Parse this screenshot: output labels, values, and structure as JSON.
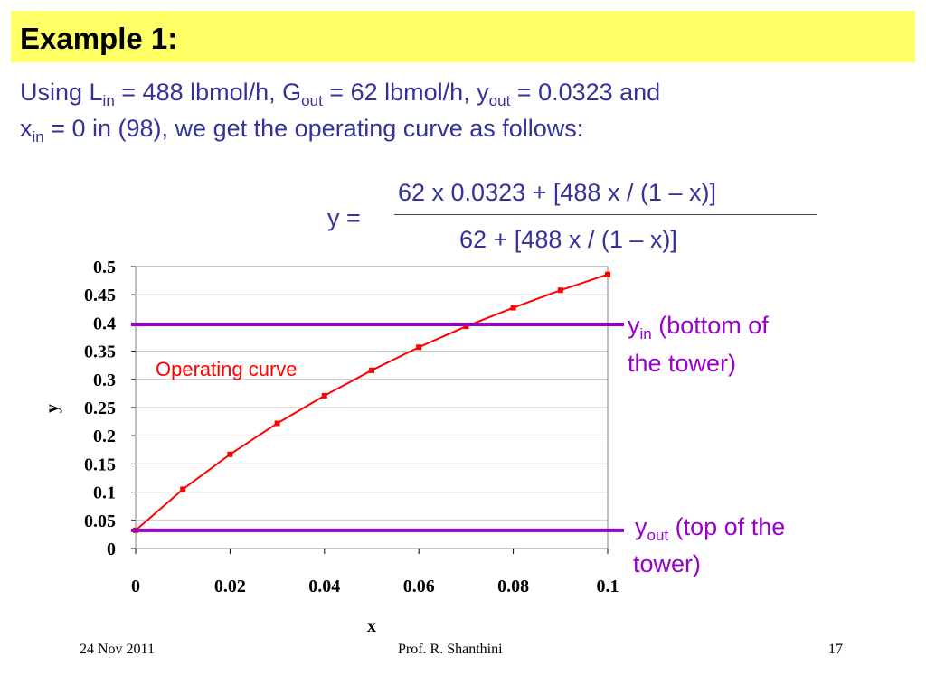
{
  "slide": {
    "title": "Example 1:",
    "intro": {
      "l1_a": "Using L",
      "l1_sub1": "in",
      "l1_b": " = 488 lbmol/h, G",
      "l1_sub2": "out",
      "l1_c": " = 62 lbmol/h, y",
      "l1_sub3": "out",
      "l1_d": " = 0.0323 and",
      "l2_a": "x",
      "l2_sub": "in",
      "l2_b": " = 0 in (98), we get the operating curve as follows:"
    },
    "equation": {
      "lhs": "y =",
      "numerator": "62 x 0.0323 + [488 x / (1 – x)]",
      "denominator": "62 + [488 x / (1 – x)]"
    },
    "annotations": {
      "yin_a": "y",
      "yin_sub": "in",
      "yin_b": " (bottom of",
      "yin_c": "the tower)",
      "yout_a": "y",
      "yout_sub": "out",
      "yout_b": " (top of the",
      "yout_c": "tower)"
    },
    "footer": {
      "date": "24 Nov 2011",
      "author": "Prof. R. Shanthini",
      "page": "17"
    },
    "colors": {
      "title_bg": "#ffff66",
      "text_blue": "#333399",
      "purple": "#9900cc",
      "curve_red": "#ff0000"
    }
  },
  "chart_data": {
    "type": "line",
    "xlabel": "x",
    "ylabel": "y",
    "xlim": [
      0,
      0.1
    ],
    "ylim": [
      0,
      0.5
    ],
    "xticks": [
      "0",
      "0.02",
      "0.04",
      "0.06",
      "0.08",
      "0.1"
    ],
    "yticks": [
      "0",
      "0.05",
      "0.1",
      "0.15",
      "0.2",
      "0.25",
      "0.3",
      "0.35",
      "0.4",
      "0.45",
      "0.5"
    ],
    "grid": true,
    "series": [
      {
        "name": "Operating curve",
        "x": [
          0,
          0.01,
          0.02,
          0.03,
          0.04,
          0.05,
          0.06,
          0.07,
          0.08,
          0.09,
          0.1
        ],
        "y": [
          0.0323,
          0.105,
          0.167,
          0.222,
          0.271,
          0.316,
          0.357,
          0.394,
          0.427,
          0.458,
          0.486
        ]
      }
    ],
    "hlines": [
      {
        "name": "y_in",
        "y": 0.3975
      },
      {
        "name": "y_out",
        "y": 0.0323
      }
    ]
  }
}
